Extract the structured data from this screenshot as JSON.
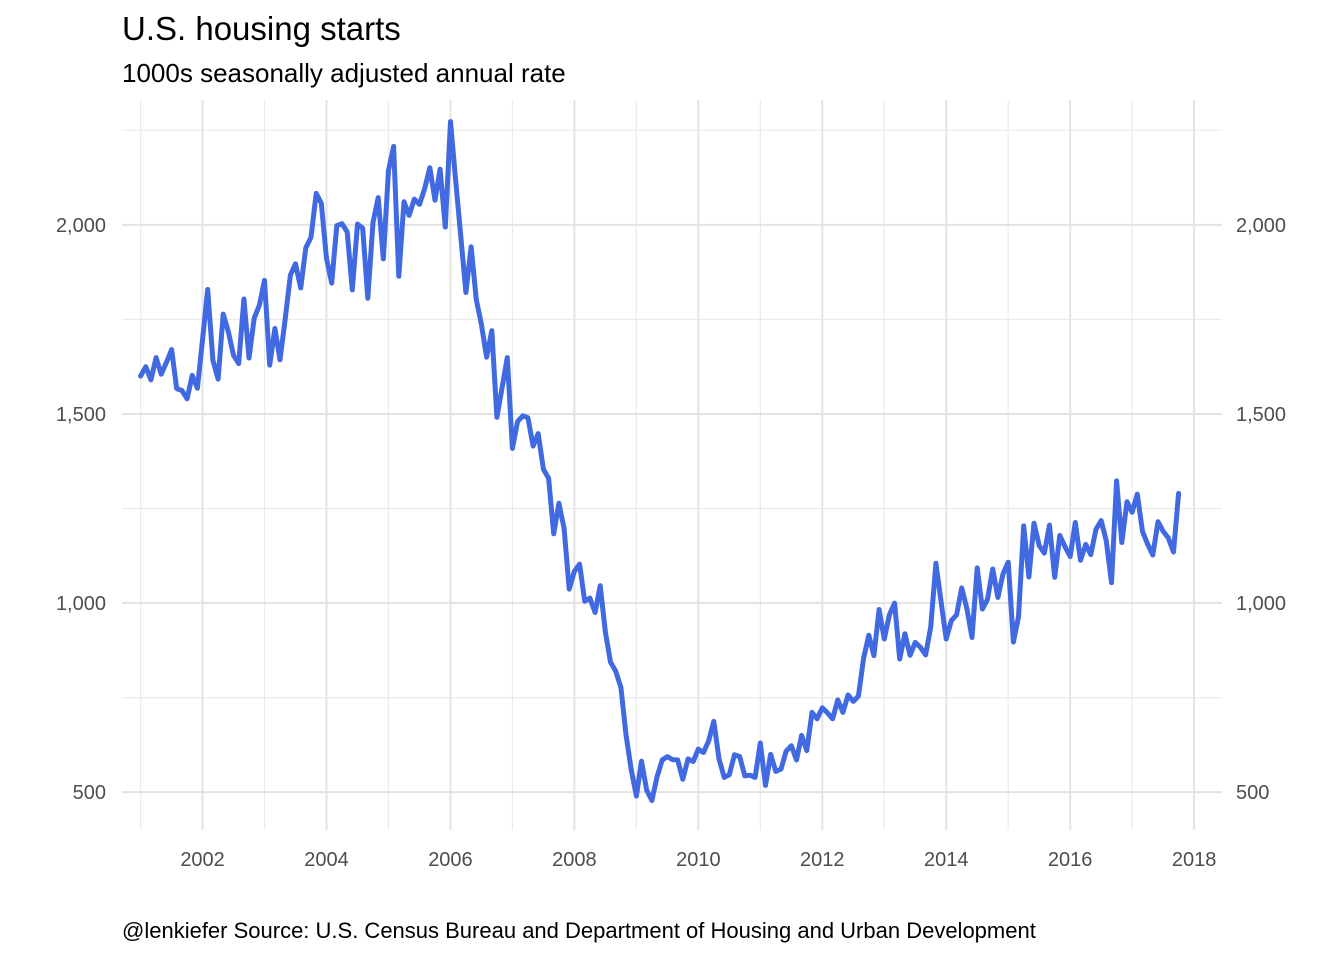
{
  "chart_data": {
    "type": "line",
    "title": "U.S. housing starts",
    "subtitle": "1000s seasonally adjusted annual rate",
    "caption": "@lenkiefer Source: U.S. Census Bureau and Department of Housing and Urban Development",
    "xlabel": "",
    "ylabel": "",
    "x_ticks": [
      "2002",
      "2004",
      "2006",
      "2008",
      "2010",
      "2012",
      "2014",
      "2016",
      "2018"
    ],
    "y_ticks": [
      "500",
      "1,000",
      "1,500",
      "2,000"
    ],
    "xlim": [
      2000.7,
      2018.45
    ],
    "ylim": [
      400,
      2330
    ],
    "grid": true,
    "legend": "none",
    "series_color": "#4169E1",
    "series": [
      {
        "x_start": "2001-01",
        "frequency": "monthly",
        "values": [
          1600,
          1625,
          1590,
          1649,
          1605,
          1636,
          1670,
          1567,
          1562,
          1540,
          1602,
          1568,
          1698,
          1829,
          1642,
          1592,
          1764,
          1717,
          1655,
          1633,
          1804,
          1648,
          1753,
          1788,
          1853,
          1629,
          1726,
          1643,
          1751,
          1867,
          1897,
          1833,
          1939,
          1967,
          2083,
          2057,
          1911,
          1846,
          1998,
          2003,
          1981,
          1828,
          2002,
          1991,
          1806,
          2006,
          2072,
          1910,
          2144,
          2207,
          1864,
          2061,
          2025,
          2068,
          2054,
          2095,
          2151,
          2065,
          2147,
          1994,
          2273,
          2119,
          1969,
          1821,
          1942,
          1802,
          1737,
          1650,
          1720,
          1491,
          1570,
          1649,
          1409,
          1480,
          1495,
          1490,
          1415,
          1448,
          1354,
          1330,
          1183,
          1264,
          1197,
          1037,
          1084,
          1103,
          1005,
          1013,
          975,
          1046,
          923,
          844,
          820,
          777,
          652,
          560,
          490,
          582,
          505,
          478,
          540,
          585,
          594,
          586,
          585,
          534,
          588,
          581,
          614,
          605,
          636,
          687,
          588,
          539,
          546,
          599,
          594,
          543,
          545,
          539,
          630,
          518,
          600,
          555,
          561,
          608,
          623,
          585,
          650,
          610,
          711,
          694,
          723,
          710,
          694,
          744,
          711,
          757,
          740,
          754,
          854,
          915,
          861,
          983,
          905,
          969,
          1000,
          852,
          919,
          862,
          896,
          883,
          863,
          936,
          1105,
          1003,
          905,
          954,
          969,
          1040,
          985,
          909,
          1093,
          984,
          1010,
          1090,
          1015,
          1077,
          1108,
          897,
          964,
          1204,
          1069,
          1211,
          1152,
          1132,
          1206,
          1068,
          1179,
          1149,
          1123,
          1213,
          1113,
          1155,
          1128,
          1195,
          1218,
          1164,
          1054,
          1323,
          1160,
          1268,
          1240,
          1288,
          1189,
          1156,
          1127,
          1215,
          1190,
          1172,
          1135,
          1290
        ]
      }
    ]
  }
}
